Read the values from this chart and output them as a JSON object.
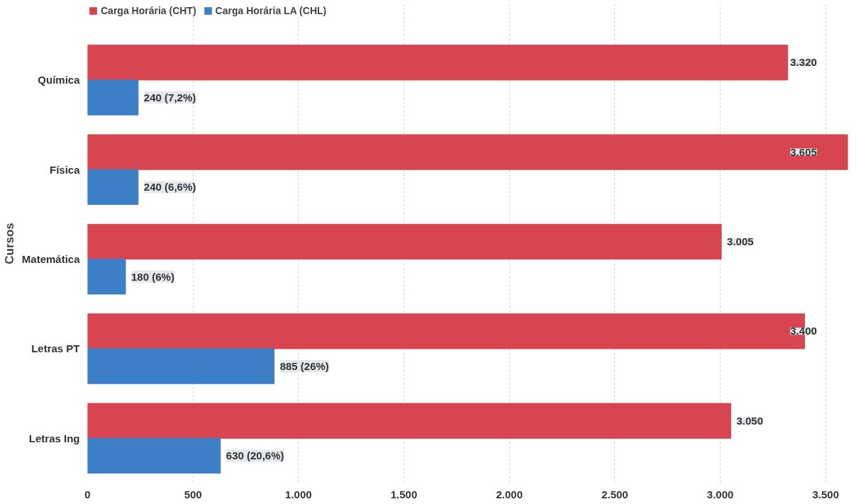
{
  "chart_data": {
    "type": "bar",
    "orientation": "horizontal",
    "ylabel": "Cursos",
    "categories": [
      "Química",
      "Física",
      "Matemática",
      "Letras PT",
      "Letras Ing"
    ],
    "series": [
      {
        "name": "Carga Horária (CHT)",
        "color": "#d64550",
        "values": [
          3320,
          3605,
          3005,
          3400,
          3050
        ],
        "value_labels": [
          "3.320",
          "3.605",
          "3.005",
          "3.400",
          "3.050"
        ]
      },
      {
        "name": "Carga Horária LA (CHL)",
        "color": "#3d7fc6",
        "values": [
          240,
          240,
          180,
          885,
          630
        ],
        "value_labels": [
          "240 (7,2%)",
          "240 (6,6%)",
          "180 (6%)",
          "885 (26%)",
          "630 (20,6%)"
        ]
      }
    ],
    "xlim": [
      0,
      3605
    ],
    "xticks": [
      0,
      {
        "value": 500,
        "label": "500"
      },
      {
        "value": 1000,
        "label": "1.000"
      },
      {
        "value": 1500,
        "label": "1.500"
      },
      {
        "value": 2000,
        "label": "2.000"
      },
      {
        "value": 2500,
        "label": "2.500"
      },
      {
        "value": 3000,
        "label": "3.000"
      },
      {
        "value": 3500,
        "label": "3.500"
      }
    ],
    "grid": "x",
    "legend": "top left"
  }
}
